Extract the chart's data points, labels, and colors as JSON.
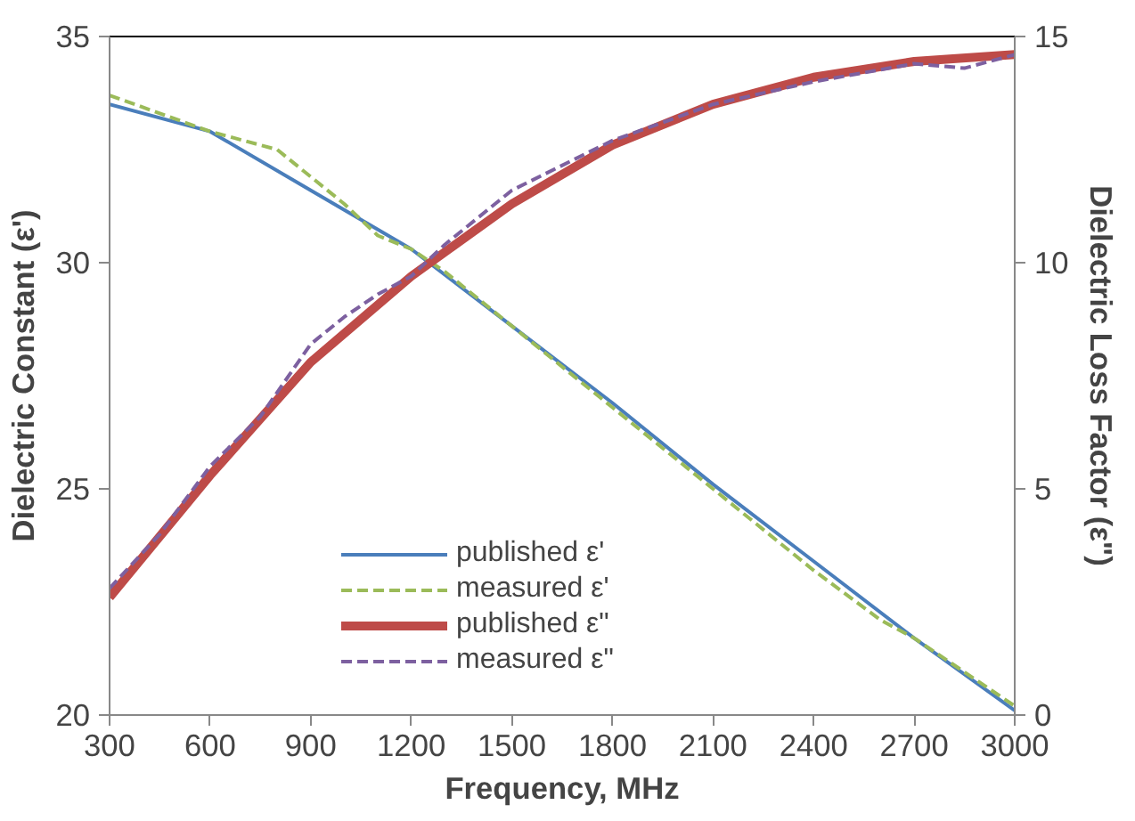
{
  "chart_data": {
    "type": "line",
    "xlabel": "Frequency, MHz",
    "ylabel": "Dielectric Constant (ε')",
    "y2label": "Dielectric Loss Factor (ε\")",
    "xlim": [
      300,
      3000
    ],
    "xticks": [
      300,
      600,
      900,
      1200,
      1500,
      1800,
      2100,
      2400,
      2700,
      3000
    ],
    "ylim": [
      20,
      35
    ],
    "yticks": [
      20,
      25,
      30,
      35
    ],
    "y2lim": [
      0,
      15
    ],
    "y2ticks": [
      0,
      5,
      10,
      15
    ],
    "grid": false,
    "legend": "bottom",
    "series": [
      {
        "name": "published ε'",
        "color": "#4a7ebb",
        "line_style": "solid",
        "x": [
          300,
          600,
          900,
          1200,
          1500,
          1800,
          2100,
          2400,
          2700,
          3000
        ],
        "values": [
          33.5,
          32.9,
          31.6,
          30.3,
          28.6,
          26.9,
          25.1,
          23.4,
          21.7,
          20.1
        ]
      },
      {
        "name": "measured ε'",
        "color": "#9bbb59",
        "line_style": "dashed",
        "x": [
          300,
          450,
          600,
          700,
          800,
          900,
          1000,
          1100,
          1200,
          1300,
          1500,
          1800,
          2100,
          2400,
          2600,
          2700,
          3000
        ],
        "values": [
          33.7,
          33.3,
          32.9,
          32.7,
          32.5,
          31.9,
          31.3,
          30.6,
          30.3,
          29.8,
          28.6,
          26.8,
          25.0,
          23.2,
          22.1,
          21.7,
          20.2
        ]
      },
      {
        "name": "published ε\"",
        "color": "#be4b48",
        "line_style": "solid",
        "axis": "y2",
        "x": [
          300,
          600,
          900,
          1200,
          1500,
          1800,
          2100,
          2400,
          2700,
          3000
        ],
        "values": [
          2.6,
          5.3,
          7.8,
          9.7,
          11.3,
          12.6,
          13.5,
          14.1,
          14.45,
          14.6
        ]
      },
      {
        "name": "measured ε\"",
        "color": "#7d60a0",
        "line_style": "dashed",
        "axis": "y2",
        "x": [
          300,
          450,
          600,
          750,
          900,
          1000,
          1100,
          1200,
          1300,
          1500,
          1800,
          2100,
          2400,
          2700,
          2850,
          3000
        ],
        "values": [
          2.8,
          4.0,
          5.5,
          6.6,
          8.2,
          8.8,
          9.3,
          9.7,
          10.4,
          11.6,
          12.7,
          13.5,
          14.0,
          14.4,
          14.3,
          14.6
        ]
      }
    ]
  }
}
